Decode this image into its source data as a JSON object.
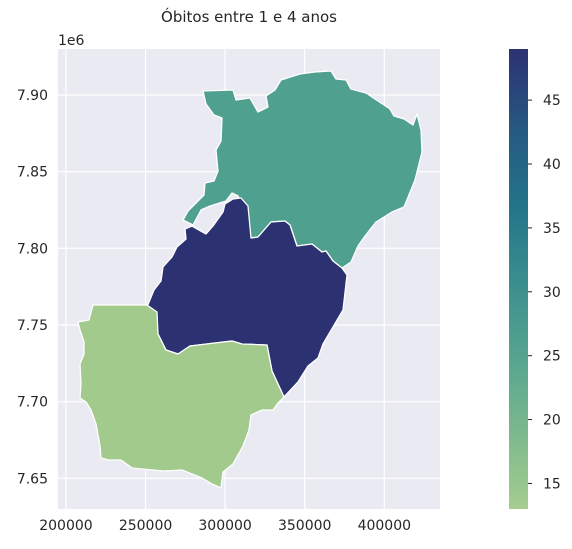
{
  "chart_data": {
    "type": "choropleth",
    "title": "Óbitos entre 1 e 4 anos",
    "x_ticks": [
      "200000",
      "250000",
      "300000",
      "350000",
      "400000"
    ],
    "y_ticks": [
      "7.65",
      "7.70",
      "7.75",
      "7.80",
      "7.85",
      "7.90"
    ],
    "y_offset_label": "1e6",
    "xlim": [
      195000,
      435000
    ],
    "ylim": [
      7630000,
      7930000
    ],
    "regions": [
      {
        "id": "north",
        "value": 24,
        "color": "#50a08f"
      },
      {
        "id": "central",
        "value": 49,
        "color": "#2c3172"
      },
      {
        "id": "south",
        "value": 13,
        "color": "#a1ca8c"
      }
    ],
    "colorbar": {
      "min": 13,
      "max": 49,
      "ticks": [
        "15",
        "20",
        "25",
        "30",
        "35",
        "40",
        "45"
      ],
      "colormap": "crest"
    },
    "grid": true
  }
}
